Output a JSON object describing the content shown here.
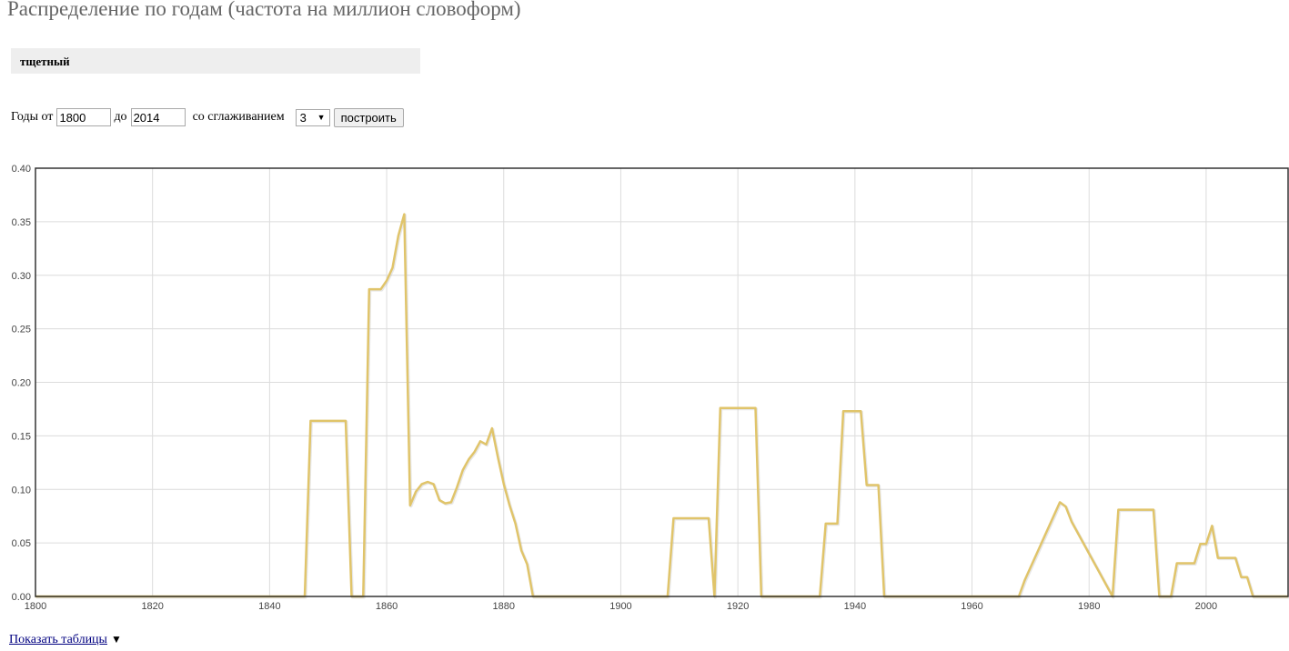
{
  "page": {
    "title": "Распределение по годам (частота на миллион словоформ)"
  },
  "query": {
    "word": "тщетный"
  },
  "controls": {
    "years_from_label": "Годы от",
    "year_from": "1800",
    "years_to_label": "до",
    "year_to": "2014",
    "smoothing_label": "со сглаживанием",
    "smoothing_value": "3",
    "build_button": "построить"
  },
  "footer": {
    "show_tables_link": "Показать таблицы",
    "toggle_icon": "triangle-down-icon"
  },
  "colors": {
    "line": "#e0c46a",
    "grid": "#dcdcdc",
    "frame": "#333333"
  },
  "chart_data": {
    "type": "line",
    "xlim": [
      1800,
      2014
    ],
    "ylim": [
      0,
      0.4
    ],
    "x_ticks": [
      1800,
      1820,
      1840,
      1860,
      1880,
      1900,
      1920,
      1940,
      1960,
      1980,
      2000
    ],
    "x_tick_labels": [
      "1800",
      "1820",
      "1840",
      "1860",
      "1880",
      "1900",
      "1920",
      "1940",
      "1960",
      "1980",
      "2000"
    ],
    "y_ticks": [
      0,
      0.05,
      0.1,
      0.15,
      0.2,
      0.25,
      0.3,
      0.35,
      0.4
    ],
    "y_tick_labels": [
      "0.00",
      "0.05",
      "0.10",
      "0.15",
      "0.20",
      "0.25",
      "0.30",
      "0.35",
      "0.40"
    ],
    "grid": true,
    "title": "",
    "xlabel": "",
    "ylabel": "",
    "series": [
      {
        "points": [
          [
            1800,
            0
          ],
          [
            1846,
            0
          ],
          [
            1847,
            0.164
          ],
          [
            1853,
            0.164
          ],
          [
            1854,
            0
          ],
          [
            1856,
            0
          ],
          [
            1857,
            0.287
          ],
          [
            1859,
            0.287
          ],
          [
            1860,
            0.295
          ],
          [
            1861,
            0.307
          ],
          [
            1862,
            0.337
          ],
          [
            1863,
            0.357
          ],
          [
            1864,
            0.085
          ],
          [
            1865,
            0.098
          ],
          [
            1866,
            0.105
          ],
          [
            1867,
            0.107
          ],
          [
            1868,
            0.105
          ],
          [
            1869,
            0.09
          ],
          [
            1870,
            0.087
          ],
          [
            1871,
            0.088
          ],
          [
            1872,
            0.102
          ],
          [
            1873,
            0.118
          ],
          [
            1874,
            0.128
          ],
          [
            1875,
            0.135
          ],
          [
            1876,
            0.145
          ],
          [
            1877,
            0.142
          ],
          [
            1878,
            0.157
          ],
          [
            1879,
            0.13
          ],
          [
            1880,
            0.105
          ],
          [
            1881,
            0.085
          ],
          [
            1882,
            0.068
          ],
          [
            1883,
            0.043
          ],
          [
            1884,
            0.03
          ],
          [
            1885,
            0
          ],
          [
            1908,
            0
          ],
          [
            1909,
            0.073
          ],
          [
            1915,
            0.073
          ],
          [
            1916,
            0
          ],
          [
            1917,
            0.176
          ],
          [
            1923,
            0.176
          ],
          [
            1924,
            0
          ],
          [
            1934,
            0
          ],
          [
            1935,
            0.068
          ],
          [
            1937,
            0.068
          ],
          [
            1938,
            0.173
          ],
          [
            1941,
            0.173
          ],
          [
            1942,
            0.104
          ],
          [
            1944,
            0.104
          ],
          [
            1945,
            0
          ],
          [
            1968,
            0
          ],
          [
            1969,
            0.015
          ],
          [
            1975,
            0.088
          ],
          [
            1976,
            0.084
          ],
          [
            1977,
            0.07
          ],
          [
            1984,
            0
          ],
          [
            1985,
            0.081
          ],
          [
            1991,
            0.081
          ],
          [
            1992,
            0
          ],
          [
            1994,
            0
          ],
          [
            1995,
            0.031
          ],
          [
            1998,
            0.031
          ],
          [
            1999,
            0.049
          ],
          [
            2000,
            0.049
          ],
          [
            2001,
            0.066
          ],
          [
            2002,
            0.036
          ],
          [
            2005,
            0.036
          ],
          [
            2006,
            0.018
          ],
          [
            2007,
            0.018
          ],
          [
            2008,
            0
          ],
          [
            2014,
            0
          ]
        ]
      }
    ]
  }
}
